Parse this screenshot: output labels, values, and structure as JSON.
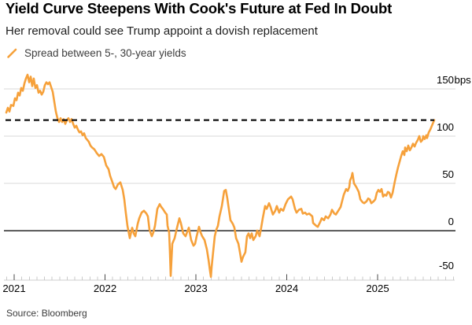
{
  "header": {
    "title": "Yield Curve Steepens With Cook's Future at Fed In Doubt",
    "subtitle": "Her removal could see Trump appoint a dovish replacement"
  },
  "legend": {
    "label": "Spread between 5-, 30-year yields",
    "color": "#F6A13B"
  },
  "source": "Source: Bloomberg",
  "chart_data": {
    "type": "line",
    "title": "Spread between 5-, 30-year yields",
    "unit": "bps",
    "grid": true,
    "legend_position": "top-left",
    "x_axis": {
      "ticks": [
        "2021",
        "2022",
        "2023",
        "2024",
        "2025"
      ],
      "minor_ticks": "monthly",
      "range_years": [
        2020.91,
        2025.65
      ]
    },
    "y_axis": {
      "side": "right",
      "ylim": [
        -60,
        170
      ],
      "ticks": [
        {
          "value": 150,
          "label": "150",
          "suffix": "bps"
        },
        {
          "value": 100,
          "label": "100"
        },
        {
          "value": 50,
          "label": "50"
        },
        {
          "value": 0,
          "label": "0"
        },
        {
          "value": -50,
          "label": "-50"
        }
      ]
    },
    "reference_line": {
      "style": "dashed",
      "value": 117,
      "color": "#111111"
    },
    "series": [
      {
        "name": "Spread between 5-, 30-year yields",
        "color": "#F6A13B",
        "points": [
          [
            2020.913,
            125
          ],
          [
            2020.931,
            130
          ],
          [
            2020.948,
            126
          ],
          [
            2020.965,
            133
          ],
          [
            2020.991,
            132
          ],
          [
            2021.009,
            140
          ],
          [
            2021.026,
            138
          ],
          [
            2021.043,
            146
          ],
          [
            2021.061,
            143
          ],
          [
            2021.078,
            151
          ],
          [
            2021.095,
            148
          ],
          [
            2021.113,
            156
          ],
          [
            2021.13,
            161
          ],
          [
            2021.147,
            165
          ],
          [
            2021.165,
            157
          ],
          [
            2021.182,
            163
          ],
          [
            2021.199,
            153
          ],
          [
            2021.216,
            161
          ],
          [
            2021.234,
            151
          ],
          [
            2021.251,
            154
          ],
          [
            2021.268,
            146
          ],
          [
            2021.286,
            148
          ],
          [
            2021.303,
            144
          ],
          [
            2021.32,
            147
          ],
          [
            2021.338,
            154
          ],
          [
            2021.355,
            157
          ],
          [
            2021.372,
            155
          ],
          [
            2021.39,
            157
          ],
          [
            2021.407,
            152
          ],
          [
            2021.424,
            147
          ],
          [
            2021.442,
            136
          ],
          [
            2021.459,
            126
          ],
          [
            2021.476,
            119
          ],
          [
            2021.494,
            115
          ],
          [
            2021.511,
            119
          ],
          [
            2021.528,
            115
          ],
          [
            2021.545,
            118
          ],
          [
            2021.563,
            113
          ],
          [
            2021.58,
            117
          ],
          [
            2021.597,
            119
          ],
          [
            2021.615,
            115
          ],
          [
            2021.632,
            118
          ],
          [
            2021.649,
            113
          ],
          [
            2021.667,
            109
          ],
          [
            2021.684,
            111
          ],
          [
            2021.701,
            107
          ],
          [
            2021.719,
            104
          ],
          [
            2021.736,
            105
          ],
          [
            2021.753,
            101
          ],
          [
            2021.77,
            103
          ],
          [
            2021.788,
            98
          ],
          [
            2021.805,
            96
          ],
          [
            2021.822,
            94
          ],
          [
            2021.84,
            90
          ],
          [
            2021.857,
            88
          ],
          [
            2021.883,
            86
          ],
          [
            2021.909,
            82
          ],
          [
            2021.935,
            79
          ],
          [
            2021.961,
            81
          ],
          [
            2021.987,
            78
          ],
          [
            2022.013,
            69
          ],
          [
            2022.039,
            65
          ],
          [
            2022.056,
            58
          ],
          [
            2022.082,
            51
          ],
          [
            2022.1,
            46
          ],
          [
            2022.117,
            44
          ],
          [
            2022.143,
            49
          ],
          [
            2022.169,
            51
          ],
          [
            2022.195,
            43
          ],
          [
            2022.212,
            33
          ],
          [
            2022.229,
            19
          ],
          [
            2022.247,
            5
          ],
          [
            2022.273,
            -8
          ],
          [
            2022.299,
            3
          ],
          [
            2022.316,
            -3
          ],
          [
            2022.333,
            -6
          ],
          [
            2022.359,
            7
          ],
          [
            2022.377,
            13
          ],
          [
            2022.403,
            19
          ],
          [
            2022.429,
            21
          ],
          [
            2022.455,
            18
          ],
          [
            2022.472,
            15
          ],
          [
            2022.489,
            1
          ],
          [
            2022.515,
            -6
          ],
          [
            2022.532,
            -2
          ],
          [
            2022.55,
            5
          ],
          [
            2022.576,
            23
          ],
          [
            2022.602,
            28
          ],
          [
            2022.619,
            25
          ],
          [
            2022.636,
            23
          ],
          [
            2022.662,
            19
          ],
          [
            2022.68,
            17
          ],
          [
            2022.688,
            5
          ],
          [
            2022.706,
            -2
          ],
          [
            2022.714,
            -23
          ],
          [
            2022.723,
            -48
          ],
          [
            2022.732,
            -31
          ],
          [
            2022.74,
            -14
          ],
          [
            2022.766,
            -8
          ],
          [
            2022.792,
            3
          ],
          [
            2022.818,
            13
          ],
          [
            2022.835,
            8
          ],
          [
            2022.861,
            -3
          ],
          [
            2022.887,
            -6
          ],
          [
            2022.922,
            3
          ],
          [
            2022.948,
            -10
          ],
          [
            2022.974,
            -16
          ],
          [
            2022.991,
            -14
          ],
          [
            2023.009,
            -6
          ],
          [
            2023.035,
            4
          ],
          [
            2023.052,
            -2
          ],
          [
            2023.069,
            -6
          ],
          [
            2023.095,
            -10
          ],
          [
            2023.121,
            -20
          ],
          [
            2023.139,
            -31
          ],
          [
            2023.156,
            -43
          ],
          [
            2023.165,
            -49
          ],
          [
            2023.173,
            -39
          ],
          [
            2023.19,
            -23
          ],
          [
            2023.208,
            -6
          ],
          [
            2023.225,
            1
          ],
          [
            2023.242,
            5
          ],
          [
            2023.26,
            15
          ],
          [
            2023.286,
            26
          ],
          [
            2023.312,
            42
          ],
          [
            2023.329,
            43
          ],
          [
            2023.346,
            34
          ],
          [
            2023.355,
            28
          ],
          [
            2023.381,
            11
          ],
          [
            2023.407,
            7
          ],
          [
            2023.424,
            3
          ],
          [
            2023.442,
            -8
          ],
          [
            2023.468,
            -14
          ],
          [
            2023.485,
            -23
          ],
          [
            2023.502,
            -33
          ],
          [
            2023.519,
            -28
          ],
          [
            2023.545,
            -23
          ],
          [
            2023.563,
            -6
          ],
          [
            2023.58,
            -3
          ],
          [
            2023.597,
            -8
          ],
          [
            2023.615,
            -3
          ],
          [
            2023.632,
            -10
          ],
          [
            2023.658,
            -6
          ],
          [
            2023.675,
            0
          ],
          [
            2023.701,
            -6
          ],
          [
            2023.719,
            3
          ],
          [
            2023.736,
            13
          ],
          [
            2023.762,
            26
          ],
          [
            2023.779,
            23
          ],
          [
            2023.805,
            29
          ],
          [
            2023.822,
            25
          ],
          [
            2023.831,
            22
          ],
          [
            2023.848,
            17
          ],
          [
            2023.874,
            21
          ],
          [
            2023.891,
            26
          ],
          [
            2023.917,
            19
          ],
          [
            2023.935,
            23
          ],
          [
            2023.961,
            21
          ],
          [
            2023.987,
            28
          ],
          [
            2024.013,
            33
          ],
          [
            2024.048,
            36
          ],
          [
            2024.065,
            33
          ],
          [
            2024.091,
            23
          ],
          [
            2024.108,
            19
          ],
          [
            2024.134,
            22
          ],
          [
            2024.16,
            23
          ],
          [
            2024.177,
            18
          ],
          [
            2024.203,
            19
          ],
          [
            2024.221,
            17
          ],
          [
            2024.247,
            18
          ],
          [
            2024.281,
            15
          ],
          [
            2024.29,
            8
          ],
          [
            2024.325,
            5
          ],
          [
            2024.342,
            4
          ],
          [
            2024.368,
            9
          ],
          [
            2024.385,
            13
          ],
          [
            2024.411,
            11
          ],
          [
            2024.429,
            15
          ],
          [
            2024.455,
            13
          ],
          [
            2024.481,
            17
          ],
          [
            2024.498,
            22
          ],
          [
            2024.524,
            18
          ],
          [
            2024.541,
            17
          ],
          [
            2024.567,
            21
          ],
          [
            2024.593,
            25
          ],
          [
            2024.628,
            38
          ],
          [
            2024.654,
            44
          ],
          [
            2024.671,
            42
          ],
          [
            2024.688,
            46
          ],
          [
            2024.697,
            53
          ],
          [
            2024.714,
            57
          ],
          [
            2024.723,
            61
          ],
          [
            2024.74,
            50
          ],
          [
            2024.766,
            46
          ],
          [
            2024.792,
            41
          ],
          [
            2024.81,
            33
          ],
          [
            2024.835,
            30
          ],
          [
            2024.853,
            29
          ],
          [
            2024.879,
            31
          ],
          [
            2024.896,
            34
          ],
          [
            2024.913,
            33
          ],
          [
            2024.931,
            29
          ],
          [
            2024.957,
            31
          ],
          [
            2024.974,
            33
          ],
          [
            2024.991,
            40
          ],
          [
            2025.009,
            43
          ],
          [
            2025.026,
            41
          ],
          [
            2025.043,
            44
          ],
          [
            2025.061,
            36
          ],
          [
            2025.078,
            38
          ],
          [
            2025.095,
            37
          ],
          [
            2025.113,
            41
          ],
          [
            2025.13,
            40
          ],
          [
            2025.147,
            35
          ],
          [
            2025.165,
            40
          ],
          [
            2025.173,
            44
          ],
          [
            2025.19,
            52
          ],
          [
            2025.208,
            60
          ],
          [
            2025.225,
            67
          ],
          [
            2025.242,
            73
          ],
          [
            2025.26,
            79
          ],
          [
            2025.277,
            84
          ],
          [
            2025.294,
            80
          ],
          [
            2025.303,
            88
          ],
          [
            2025.32,
            84
          ],
          [
            2025.338,
            90
          ],
          [
            2025.355,
            85
          ],
          [
            2025.372,
            88
          ],
          [
            2025.39,
            92
          ],
          [
            2025.407,
            89
          ],
          [
            2025.424,
            93
          ],
          [
            2025.442,
            96
          ],
          [
            2025.459,
            100
          ],
          [
            2025.476,
            94
          ],
          [
            2025.494,
            96
          ],
          [
            2025.502,
            100
          ],
          [
            2025.519,
            97
          ],
          [
            2025.537,
            101
          ],
          [
            2025.545,
            98
          ],
          [
            2025.563,
            104
          ],
          [
            2025.58,
            107
          ],
          [
            2025.589,
            109
          ],
          [
            2025.606,
            113
          ],
          [
            2025.623,
            117
          ]
        ]
      }
    ]
  }
}
